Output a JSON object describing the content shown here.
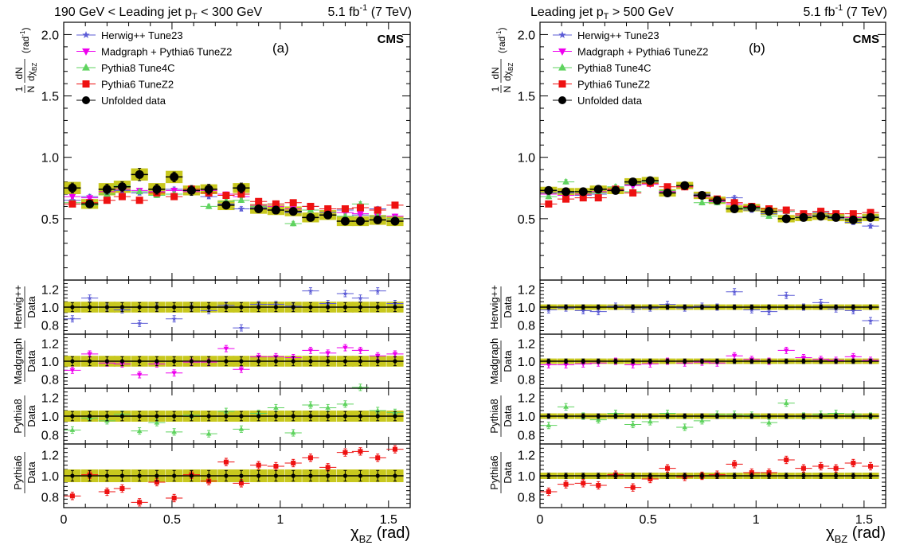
{
  "legend": {
    "entries": [
      {
        "key": "herwig",
        "label": "Herwig++ Tune23",
        "color": "#5b5bd6",
        "marker": "star"
      },
      {
        "key": "madgraph",
        "label": "Madgraph + Pythia6 TuneZ2",
        "color": "#ee00ee",
        "marker": "triangle-down"
      },
      {
        "key": "pythia8",
        "label": "Pythia8 Tune4C",
        "color": "#5fd35f",
        "marker": "triangle-up"
      },
      {
        "key": "pythia6",
        "label": "Pythia6 TuneZ2",
        "color": "#ee1111",
        "marker": "square"
      },
      {
        "key": "data",
        "label": "Unfolded data",
        "color": "#000000",
        "marker": "circle"
      }
    ]
  },
  "ratio_labels": [
    {
      "key": "herwig",
      "num": "Herwig++",
      "den": "Data"
    },
    {
      "key": "madgraph",
      "num": "Madgraph",
      "den": "Data"
    },
    {
      "key": "pythia8",
      "num": "Pythia8",
      "den": "Data"
    },
    {
      "key": "pythia6",
      "num": "Pythia6",
      "den": "Data"
    }
  ],
  "main_ylabel": {
    "frac_num": "1",
    "frac_den": "N",
    "deriv_num": "dN",
    "deriv_den": "dχ",
    "deriv_den_sub": "BZ",
    "unit": "(rad",
    "unit_sup": "-1",
    "unit_close": ")"
  },
  "x_axis_label": {
    "symbol": "χ",
    "sub": "BZ",
    "unit": "(rad)"
  },
  "cms_label": "CMS",
  "colors": {
    "band": "#c8c81e",
    "band_line": "#777700"
  },
  "chart_data": [
    {
      "type": "line",
      "panel_label": "(a)",
      "title_left": {
        "pre": "190 GeV < Leading jet p",
        "sub": "T",
        "post": " < 300 GeV"
      },
      "title_right": {
        "pre": "5.1 fb",
        "sup": "-1",
        "post": " (7 TeV)"
      },
      "xlim": [
        0,
        1.6
      ],
      "xticks": [
        0,
        0.5,
        1,
        1.5
      ],
      "xticklabels": [
        "0",
        "0.5",
        "1",
        "1.5"
      ],
      "main_ylim": [
        0,
        2.1
      ],
      "main_yticks": [
        0.5,
        1.0,
        1.5,
        2.0
      ],
      "main_yticklabels": [
        "0.5",
        "1.0",
        "1.5",
        "2.0"
      ],
      "ratio_ylim": [
        0.7,
        1.3
      ],
      "ratio_yticks": [
        0.8,
        1.0,
        1.2
      ],
      "ratio_yticklabels": [
        "0.8",
        "1.0",
        "1.2"
      ],
      "x": [
        0.04,
        0.12,
        0.2,
        0.27,
        0.35,
        0.43,
        0.51,
        0.59,
        0.67,
        0.75,
        0.82,
        0.9,
        0.98,
        1.06,
        1.14,
        1.22,
        1.3,
        1.37,
        1.45,
        1.53
      ],
      "x_half_width": 0.039,
      "main": {
        "data": [
          0.75,
          0.62,
          0.74,
          0.76,
          0.86,
          0.74,
          0.84,
          0.73,
          0.74,
          0.61,
          0.75,
          0.58,
          0.57,
          0.56,
          0.51,
          0.53,
          0.48,
          0.48,
          0.49,
          0.48
        ],
        "data_err": [
          0.04,
          0.03,
          0.04,
          0.04,
          0.05,
          0.04,
          0.04,
          0.04,
          0.04,
          0.03,
          0.04,
          0.03,
          0.03,
          0.03,
          0.03,
          0.03,
          0.03,
          0.03,
          0.03,
          0.03
        ],
        "band_err": [
          0.05,
          0.04,
          0.05,
          0.05,
          0.05,
          0.05,
          0.05,
          0.04,
          0.04,
          0.04,
          0.04,
          0.04,
          0.04,
          0.04,
          0.04,
          0.04,
          0.04,
          0.04,
          0.04,
          0.04
        ],
        "herwig": [
          0.65,
          0.68,
          0.7,
          0.73,
          0.71,
          0.72,
          0.74,
          0.73,
          0.68,
          0.62,
          0.58,
          0.59,
          0.57,
          0.55,
          0.6,
          0.55,
          0.57,
          0.53,
          0.58,
          0.5
        ],
        "madgraph": [
          0.68,
          0.67,
          0.72,
          0.74,
          0.73,
          0.72,
          0.73,
          0.72,
          0.73,
          0.7,
          0.68,
          0.61,
          0.6,
          0.58,
          0.57,
          0.58,
          0.55,
          0.54,
          0.52,
          0.52
        ],
        "pythia8": [
          0.63,
          0.61,
          0.7,
          0.77,
          0.72,
          0.69,
          0.7,
          0.74,
          0.6,
          0.64,
          0.65,
          0.6,
          0.62,
          0.46,
          0.57,
          0.58,
          0.52,
          0.62,
          0.52,
          0.5
        ],
        "pythia6": [
          0.62,
          0.63,
          0.65,
          0.68,
          0.65,
          0.71,
          0.68,
          0.74,
          0.71,
          0.69,
          0.7,
          0.64,
          0.62,
          0.63,
          0.6,
          0.58,
          0.58,
          0.59,
          0.57,
          0.61
        ]
      },
      "ratio": {
        "data_err": [
          0.05,
          0.05,
          0.05,
          0.05,
          0.05,
          0.05,
          0.05,
          0.05,
          0.05,
          0.05,
          0.05,
          0.05,
          0.05,
          0.05,
          0.05,
          0.05,
          0.05,
          0.05,
          0.05,
          0.05
        ],
        "band_err": [
          0.06,
          0.06,
          0.06,
          0.06,
          0.06,
          0.06,
          0.06,
          0.06,
          0.06,
          0.06,
          0.06,
          0.06,
          0.06,
          0.06,
          0.06,
          0.06,
          0.06,
          0.06,
          0.06,
          0.06
        ],
        "herwig": [
          0.87,
          1.1,
          1.0,
          0.97,
          0.82,
          1.0,
          0.87,
          1.0,
          0.96,
          1.02,
          0.77,
          1.03,
          1.03,
          1.01,
          1.18,
          1.04,
          1.15,
          1.1,
          1.18,
          1.04
        ],
        "madgraph": [
          0.9,
          1.08,
          0.98,
          0.97,
          0.85,
          0.97,
          0.87,
          0.99,
          0.99,
          1.14,
          0.91,
          1.05,
          1.05,
          1.04,
          1.12,
          1.09,
          1.15,
          1.12,
          1.06,
          1.08
        ],
        "pythia8": [
          0.85,
          0.98,
          0.95,
          1.02,
          0.84,
          0.93,
          0.83,
          1.01,
          0.81,
          1.05,
          0.86,
          1.03,
          1.09,
          0.82,
          1.12,
          1.09,
          1.13,
          1.31,
          1.06,
          1.04
        ],
        "pythia6": [
          0.81,
          1.01,
          0.85,
          0.88,
          0.75,
          0.94,
          0.79,
          1.01,
          0.95,
          1.13,
          0.93,
          1.1,
          1.09,
          1.12,
          1.17,
          1.08,
          1.22,
          1.23,
          1.17,
          1.25
        ]
      }
    },
    {
      "type": "line",
      "panel_label": "(b)",
      "title_left": {
        "pre": "Leading jet p",
        "sub": "T",
        "post": " > 500 GeV"
      },
      "title_right": {
        "pre": "5.1 fb",
        "sup": "-1",
        "post": " (7 TeV)"
      },
      "xlim": [
        0,
        1.6
      ],
      "xticks": [
        0,
        0.5,
        1,
        1.5
      ],
      "xticklabels": [
        "0",
        "0.5",
        "1",
        "1.5"
      ],
      "main_ylim": [
        0,
        2.1
      ],
      "main_yticks": [
        0.5,
        1.0,
        1.5,
        2.0
      ],
      "main_yticklabels": [
        "0.5",
        "1.0",
        "1.5",
        "2.0"
      ],
      "ratio_ylim": [
        0.7,
        1.3
      ],
      "ratio_yticks": [
        0.8,
        1.0,
        1.2
      ],
      "ratio_yticklabels": [
        "0.8",
        "1.0",
        "1.2"
      ],
      "x": [
        0.04,
        0.12,
        0.2,
        0.27,
        0.35,
        0.43,
        0.51,
        0.59,
        0.67,
        0.75,
        0.82,
        0.9,
        0.98,
        1.06,
        1.14,
        1.22,
        1.3,
        1.37,
        1.45,
        1.53
      ],
      "x_half_width": 0.039,
      "main": {
        "data": [
          0.73,
          0.72,
          0.72,
          0.74,
          0.73,
          0.8,
          0.81,
          0.71,
          0.77,
          0.69,
          0.65,
          0.58,
          0.59,
          0.56,
          0.5,
          0.51,
          0.52,
          0.51,
          0.49,
          0.51
        ],
        "data_err": [
          0.02,
          0.02,
          0.02,
          0.02,
          0.02,
          0.02,
          0.02,
          0.02,
          0.02,
          0.02,
          0.02,
          0.02,
          0.02,
          0.02,
          0.02,
          0.02,
          0.02,
          0.02,
          0.02,
          0.02
        ],
        "band_err": [
          0.03,
          0.03,
          0.03,
          0.03,
          0.03,
          0.03,
          0.03,
          0.03,
          0.03,
          0.03,
          0.03,
          0.03,
          0.03,
          0.03,
          0.03,
          0.03,
          0.03,
          0.03,
          0.03,
          0.03
        ],
        "herwig": [
          0.71,
          0.71,
          0.69,
          0.7,
          0.74,
          0.78,
          0.8,
          0.72,
          0.76,
          0.7,
          0.65,
          0.67,
          0.57,
          0.54,
          0.56,
          0.51,
          0.55,
          0.5,
          0.47,
          0.44
        ],
        "madgraph": [
          0.7,
          0.69,
          0.7,
          0.72,
          0.73,
          0.77,
          0.78,
          0.72,
          0.76,
          0.68,
          0.64,
          0.62,
          0.6,
          0.56,
          0.56,
          0.53,
          0.53,
          0.52,
          0.51,
          0.52
        ],
        "pythia8": [
          0.68,
          0.8,
          0.72,
          0.71,
          0.76,
          0.72,
          0.8,
          0.73,
          0.77,
          0.63,
          0.63,
          0.59,
          0.58,
          0.52,
          0.56,
          0.51,
          0.53,
          0.52,
          0.5,
          0.52
        ],
        "pythia6": [
          0.62,
          0.66,
          0.67,
          0.67,
          0.74,
          0.71,
          0.79,
          0.76,
          0.76,
          0.69,
          0.66,
          0.63,
          0.6,
          0.58,
          0.57,
          0.54,
          0.56,
          0.54,
          0.54,
          0.55
        ]
      },
      "ratio": {
        "data_err": [
          0.025,
          0.025,
          0.025,
          0.025,
          0.025,
          0.025,
          0.025,
          0.025,
          0.025,
          0.025,
          0.025,
          0.025,
          0.025,
          0.025,
          0.025,
          0.025,
          0.025,
          0.025,
          0.025,
          0.025
        ],
        "band_err": [
          0.03,
          0.03,
          0.03,
          0.03,
          0.03,
          0.03,
          0.03,
          0.03,
          0.03,
          0.03,
          0.03,
          0.03,
          0.03,
          0.03,
          0.03,
          0.03,
          0.03,
          0.03,
          0.03,
          0.03
        ],
        "herwig": [
          0.97,
          0.99,
          0.96,
          0.95,
          1.01,
          0.98,
          0.99,
          1.03,
          0.99,
          1.01,
          1.0,
          1.17,
          0.97,
          0.95,
          1.13,
          1.0,
          1.05,
          0.98,
          0.96,
          0.85
        ],
        "madgraph": [
          0.96,
          0.96,
          0.97,
          0.98,
          1.0,
          0.96,
          0.97,
          1.0,
          0.98,
          0.99,
          0.98,
          1.06,
          1.02,
          1.0,
          1.12,
          1.04,
          1.02,
          1.01,
          1.05,
          1.01
        ],
        "pythia8": [
          0.9,
          1.1,
          1.0,
          0.96,
          1.03,
          0.91,
          0.94,
          1.03,
          0.88,
          0.95,
          1.02,
          1.02,
          1.01,
          0.93,
          1.14,
          1.0,
          1.02,
          1.03,
          1.02,
          1.0
        ],
        "pythia6": [
          0.85,
          0.92,
          0.93,
          0.91,
          1.01,
          0.89,
          0.97,
          1.07,
          0.99,
          1.0,
          1.01,
          1.11,
          1.03,
          1.03,
          1.15,
          1.07,
          1.09,
          1.07,
          1.12,
          1.09
        ]
      }
    }
  ]
}
